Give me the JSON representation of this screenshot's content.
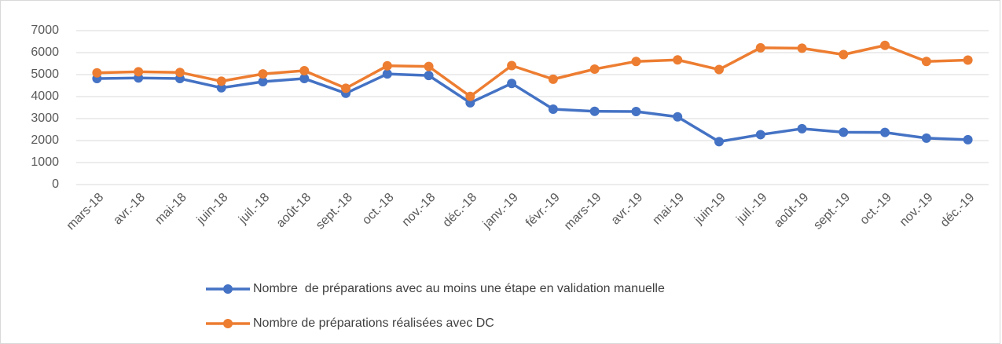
{
  "chart_data": {
    "type": "line",
    "categories": [
      "mars-18",
      "avr.-18",
      "mai-18",
      "juin-18",
      "juil.-18",
      "août-18",
      "sept.-18",
      "oct.-18",
      "nov.-18",
      "déc.-18",
      "janv.-19",
      "févr.-19",
      "mars-19",
      "avr.-19",
      "mai-19",
      "juin-19",
      "juil.-19",
      "août-19",
      "sept.-19",
      "oct.-19",
      "nov.-19",
      "déc.-19"
    ],
    "series": [
      {
        "name": "Nombre  de préparations avec au moins une étape en validation manuelle",
        "color": "#4472c4",
        "values": [
          4820,
          4850,
          4820,
          4400,
          4680,
          4820,
          4150,
          5030,
          4960,
          3720,
          4600,
          3430,
          3330,
          3320,
          3080,
          1950,
          2270,
          2540,
          2380,
          2370,
          2110,
          2040
        ]
      },
      {
        "name": "Nombre de préparations réalisées avec DC",
        "color": "#ed7d31",
        "values": [
          5080,
          5130,
          5100,
          4700,
          5030,
          5180,
          4380,
          5400,
          5370,
          4010,
          5410,
          4790,
          5250,
          5600,
          5670,
          5230,
          6220,
          6200,
          5910,
          6330,
          5600,
          5660
        ]
      }
    ],
    "ylim": [
      0,
      7000
    ],
    "yticks": [
      0,
      1000,
      2000,
      3000,
      4000,
      5000,
      6000,
      7000
    ],
    "grid": true,
    "legend": "bottom"
  }
}
